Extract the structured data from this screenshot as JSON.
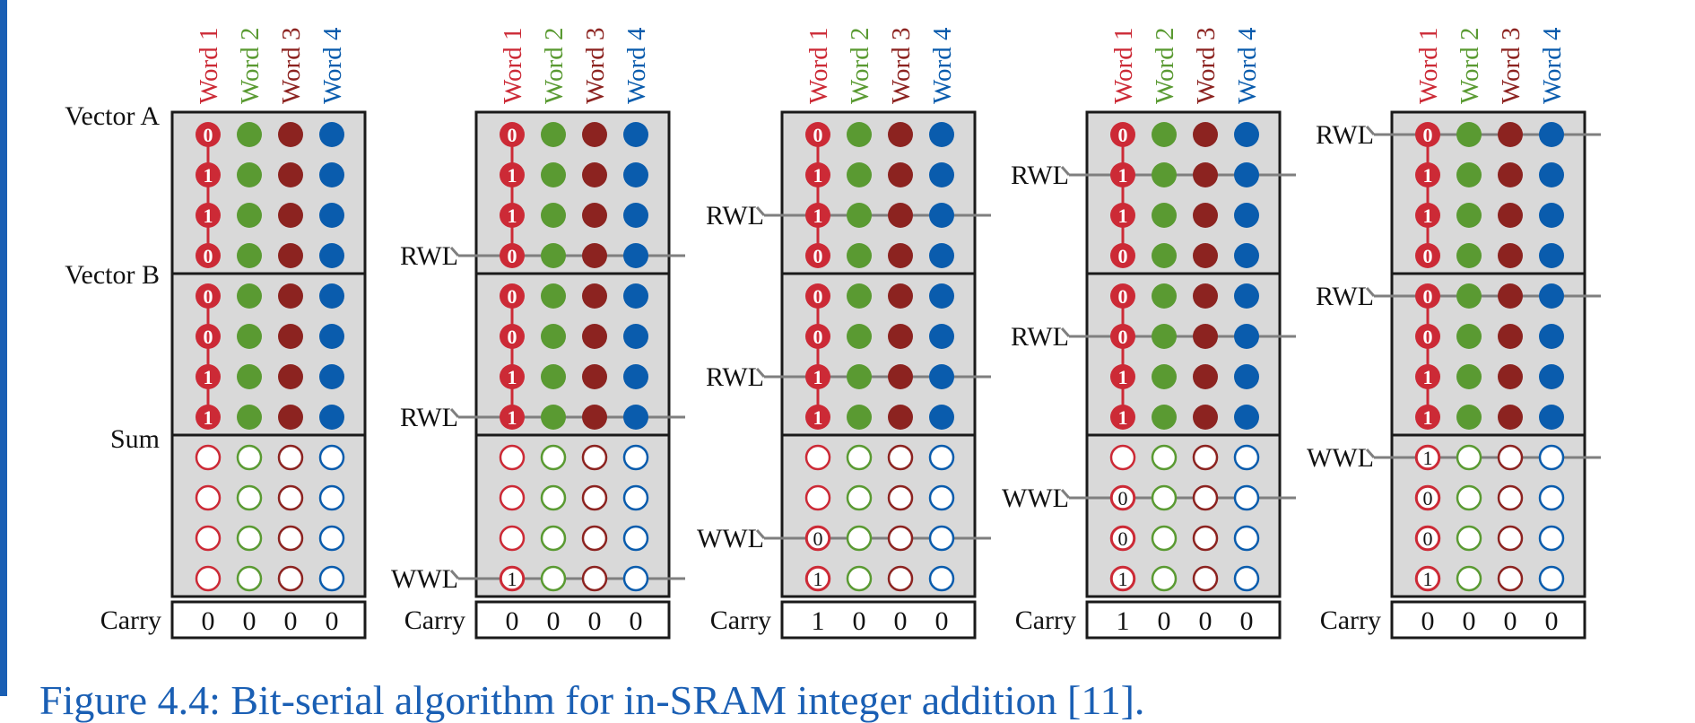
{
  "colors": {
    "word1": "#cc2a36",
    "word2": "#5a9a32",
    "word3": "#8c2320",
    "word4": "#0a5cad",
    "block_fill": "#d9d9d9",
    "border": "#1a1a1a",
    "line": "#7f7f7f",
    "accent": "#1a5fb4"
  },
  "word_headers": [
    "Word 1",
    "Word 2",
    "Word 3",
    "Word 4"
  ],
  "row_labels": {
    "vector_a": "Vector A",
    "vector_b": "Vector B",
    "sum": "Sum"
  },
  "carry_label": "Carry",
  "line_labels": {
    "read": "RWL",
    "write": "WWL"
  },
  "vector_a_bits": [
    "0",
    "1",
    "1",
    "0"
  ],
  "vector_b_bits": [
    "0",
    "0",
    "1",
    "1"
  ],
  "steps": [
    {
      "carry": [
        "0",
        "0",
        "0",
        "0"
      ],
      "sum_bits": [
        "",
        "",
        "",
        ""
      ],
      "rwl_a": null,
      "rwl_b": null,
      "wwl": null
    },
    {
      "carry": [
        "0",
        "0",
        "0",
        "0"
      ],
      "sum_bits": [
        "",
        "",
        "",
        "1"
      ],
      "rwl_a": 3,
      "rwl_b": 3,
      "wwl": 3
    },
    {
      "carry": [
        "1",
        "0",
        "0",
        "0"
      ],
      "sum_bits": [
        "",
        "",
        "0",
        "1"
      ],
      "rwl_a": 2,
      "rwl_b": 2,
      "wwl": 2
    },
    {
      "carry": [
        "1",
        "0",
        "0",
        "0"
      ],
      "sum_bits": [
        "",
        "0",
        "0",
        "1"
      ],
      "rwl_a": 1,
      "rwl_b": 1,
      "wwl": 1
    },
    {
      "carry": [
        "0",
        "0",
        "0",
        "0"
      ],
      "sum_bits": [
        "1",
        "0",
        "0",
        "1"
      ],
      "rwl_a": 0,
      "rwl_b": 0,
      "wwl": 0
    }
  ],
  "caption": "Figure 4.4: Bit-serial algorithm for in-SRAM integer addition [11]."
}
